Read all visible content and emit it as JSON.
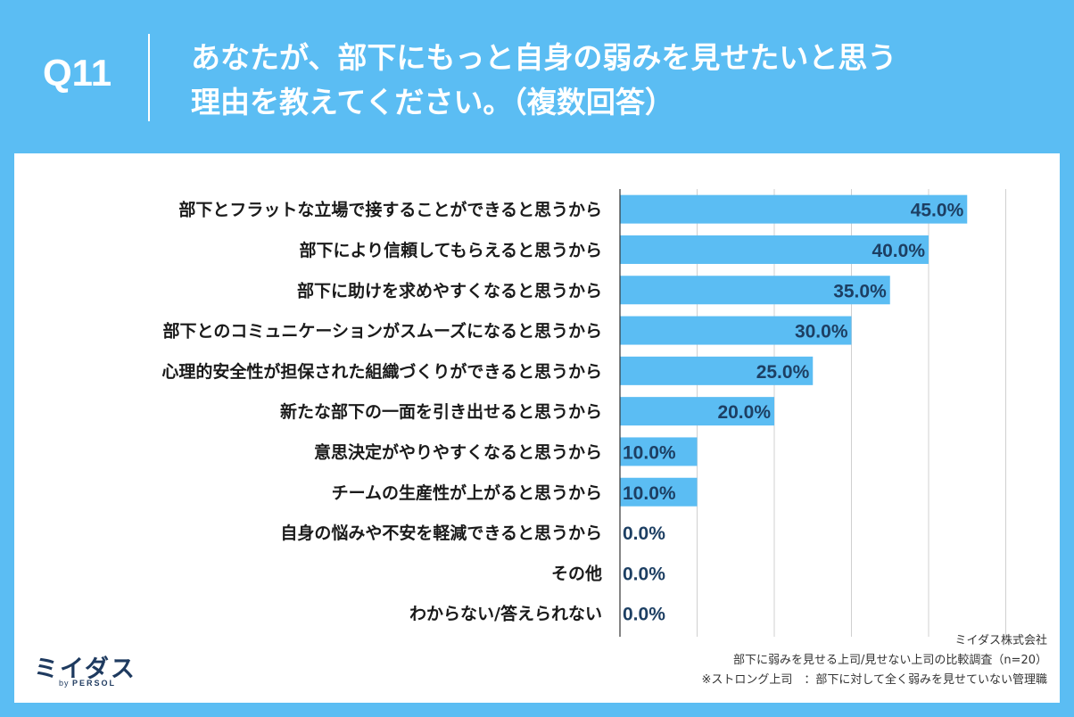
{
  "header": {
    "question_number": "Q11",
    "title_line1": "あなたが、部下にもっと自身の弱みを見せたいと思う",
    "title_line2": "理由を教えてください。（複数回答）"
  },
  "chart_data": {
    "type": "bar",
    "orientation": "horizontal",
    "categories": [
      "部下とフラットな立場で接することができると思うから",
      "部下により信頼してもらえると思うから",
      "部下に助けを求めやすくなると思うから",
      "部下とのコミュニケーションがスムーズになると思うから",
      "心理的安全性が担保された組織づくりができると思うから",
      "新たな部下の一面を引き出せると思うから",
      "意思決定がやりやすくなると思うから",
      "チームの生産性が上がると思うから",
      "自身の悩みや不安を軽減できると思うから",
      "その他",
      "わからない/答えられない"
    ],
    "values": [
      45.0,
      40.0,
      35.0,
      30.0,
      25.0,
      20.0,
      10.0,
      10.0,
      0.0,
      0.0,
      0.0
    ],
    "value_labels": [
      "45.0%",
      "40.0%",
      "35.0%",
      "30.0%",
      "25.0%",
      "20.0%",
      "10.0%",
      "10.0%",
      "0.0%",
      "0.0%",
      "0.0%"
    ],
    "xlim": [
      0,
      50
    ],
    "grid": true,
    "bar_color": "#5bbdf3",
    "label_color": "#1d3f63"
  },
  "logo": {
    "name": "ミイダス",
    "by": "by",
    "brand": "PERSOL"
  },
  "notes": {
    "company": "ミイダス株式会社",
    "survey": "部下に弱みを見せる上司/見せない上司の比較調査（n=20）",
    "definition": "※ストロング上司　：部下に対して全く弱みを見せていない管理職"
  },
  "colors": {
    "background": "#5bbdf3",
    "panel": "#ffffff",
    "bar": "#5bbdf3",
    "value_text": "#1d3f63"
  }
}
